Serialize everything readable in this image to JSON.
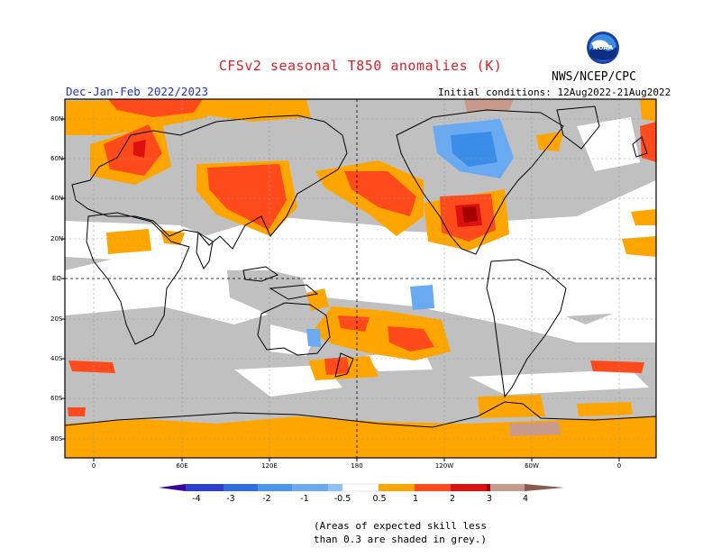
{
  "header": {
    "title": "CFSv2 seasonal T850 anomalies (K)",
    "org": "NWS/NCEP/CPC",
    "logo_text": "NOAA",
    "period": "Dec-Jan-Feb 2022/2023",
    "initial_conditions": "Initial conditions: 12Aug2022-21Aug2022"
  },
  "map": {
    "lat_labels": [
      "80N",
      "60N",
      "40N",
      "20N",
      "EQ",
      "20S",
      "40S",
      "60S",
      "80S"
    ],
    "lon_labels": [
      "0",
      "60E",
      "120E",
      "180",
      "120W",
      "60W",
      "0"
    ],
    "colors": {
      "skill_grey": "#c0c0c0",
      "orange": "#ffa500",
      "red_orange": "#ff4a1c",
      "red": "#dd1010",
      "dark_red": "#a30000",
      "light_blue": "#6aaaf2",
      "blue": "#3b8ee8"
    }
  },
  "colorbar": {
    "labels": [
      "-4",
      "-3",
      "-2",
      "-1",
      "-0.5",
      "0.5",
      "1",
      "2",
      "3",
      "4"
    ],
    "colors": [
      "#3b00a0",
      "#2a3fd0",
      "#2e6fe0",
      "#4a95ec",
      "#8cc0f8",
      "#ffffff",
      "#ffa500",
      "#ff4a1c",
      "#dd1010",
      "#a30000",
      "#c89a8c",
      "#8a5a4c"
    ]
  },
  "note": {
    "line1": "(Areas of expected skill less",
    "line2": "than 0.3 are shaded in grey.)"
  }
}
